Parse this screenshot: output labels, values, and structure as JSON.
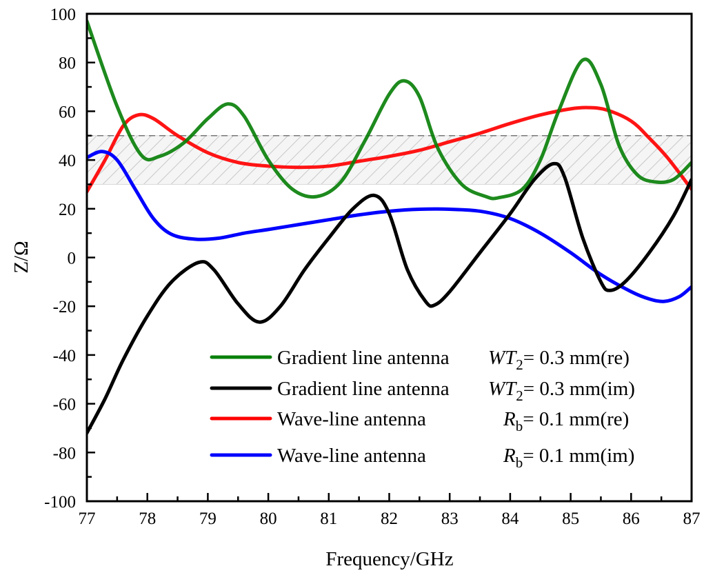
{
  "chart_data": {
    "type": "line",
    "title": "",
    "xlabel": "Frequency/GHz",
    "ylabel": "Z/Ω",
    "xlim": [
      77,
      87
    ],
    "ylim": [
      -100,
      100
    ],
    "x_ticks": [
      77,
      78,
      79,
      80,
      81,
      82,
      83,
      84,
      85,
      86,
      87
    ],
    "x_tick_labels": [
      "77",
      "78",
      "79",
      "80",
      "81",
      "82",
      "83",
      "84",
      "85",
      "86",
      "87"
    ],
    "y_ticks": [
      -100,
      -80,
      -60,
      -40,
      -20,
      0,
      20,
      40,
      60,
      80,
      100
    ],
    "y_tick_labels": [
      "-100",
      "-80",
      "-60",
      "-40",
      "-20",
      "0",
      "20",
      "40",
      "60",
      "80",
      "100"
    ],
    "grid": false,
    "legend_position": "bottom-right",
    "shaded_band": {
      "y_low": 30,
      "y_high": 50,
      "dashed_line_at": 50,
      "fill": "#f4f4f4",
      "hatch": "#bdbdbd"
    },
    "series": [
      {
        "name": "Gradient line antenna",
        "param_italic": "WT",
        "param_sub": "2",
        "param_rest": "= 0.3 mm(re)",
        "color": "#0a800a",
        "x": [
          77,
          77.5,
          77.9,
          78.2,
          78.6,
          79.0,
          79.33,
          79.6,
          80.0,
          80.4,
          80.8,
          81.2,
          81.6,
          82.0,
          82.25,
          82.5,
          82.8,
          83.2,
          83.6,
          83.8,
          84.2,
          84.5,
          84.8,
          85.2,
          85.5,
          85.8,
          86.1,
          86.4,
          86.7,
          87
        ],
        "y": [
          97,
          62,
          42,
          41.5,
          47,
          57,
          63,
          58,
          40,
          28,
          25,
          31,
          48,
          67,
          72.5,
          66,
          45,
          30,
          25,
          24.5,
          28,
          40,
          60,
          81,
          71,
          46,
          34,
          31,
          32,
          39
        ]
      },
      {
        "name": "Gradient line antenna",
        "param_italic": "WT",
        "param_sub": "2",
        "param_rest": "= 0.3 mm(im)",
        "color": "#000000",
        "x": [
          77,
          77.3,
          77.6,
          78.0,
          78.4,
          78.85,
          79.1,
          79.5,
          79.85,
          80.2,
          80.6,
          81.0,
          81.4,
          81.75,
          82.0,
          82.3,
          82.6,
          82.75,
          83.0,
          83.5,
          84.0,
          84.4,
          84.72,
          84.9,
          85.2,
          85.5,
          85.65,
          85.9,
          86.3,
          86.7,
          87
        ],
        "y": [
          -72,
          -58,
          -42,
          -24,
          -10,
          -2,
          -5,
          -19,
          -26.5,
          -20,
          -5,
          8,
          20,
          25.5,
          18,
          -5,
          -18,
          -19.5,
          -14,
          2,
          18,
          32,
          38.5,
          33,
          8,
          -10,
          -13.5,
          -10,
          2,
          17,
          32
        ]
      },
      {
        "name": "Wave-line antenna",
        "param_italic": "R",
        "param_sub": "b",
        "param_rest": "= 0.1 mm(re)",
        "color": "#ff0000",
        "x": [
          77,
          77.3,
          77.6,
          77.85,
          78.1,
          78.5,
          79.0,
          79.5,
          80.0,
          80.5,
          81.0,
          81.5,
          82.0,
          82.5,
          83.0,
          83.5,
          84.0,
          84.5,
          85.0,
          85.3,
          85.6,
          86.0,
          86.3,
          86.6,
          87
        ],
        "y": [
          27,
          40,
          54,
          58.5,
          57,
          50,
          43,
          39,
          37.5,
          37,
          37.5,
          39.5,
          41.5,
          44,
          47.5,
          51,
          55,
          58.5,
          61,
          61.5,
          60.5,
          56,
          49,
          41,
          28
        ]
      },
      {
        "name": "Wave-line antenna",
        "param_italic": "R",
        "param_sub": "b",
        "param_rest": "= 0.1 mm(im)",
        "color": "#0000ff",
        "x": [
          77,
          77.25,
          77.5,
          77.8,
          78.1,
          78.4,
          78.8,
          79.2,
          79.6,
          80.0,
          80.5,
          81.0,
          81.5,
          82.0,
          82.5,
          83.0,
          83.5,
          84.0,
          84.5,
          85.0,
          85.5,
          86.0,
          86.3,
          86.55,
          86.8,
          87
        ],
        "y": [
          41,
          43.5,
          40,
          28,
          16,
          9.5,
          7.5,
          8,
          10,
          11.5,
          13.5,
          15.5,
          17.5,
          19,
          19.8,
          19.8,
          19,
          16,
          10,
          2,
          -7,
          -14,
          -17,
          -18,
          -16,
          -12
        ]
      }
    ]
  }
}
